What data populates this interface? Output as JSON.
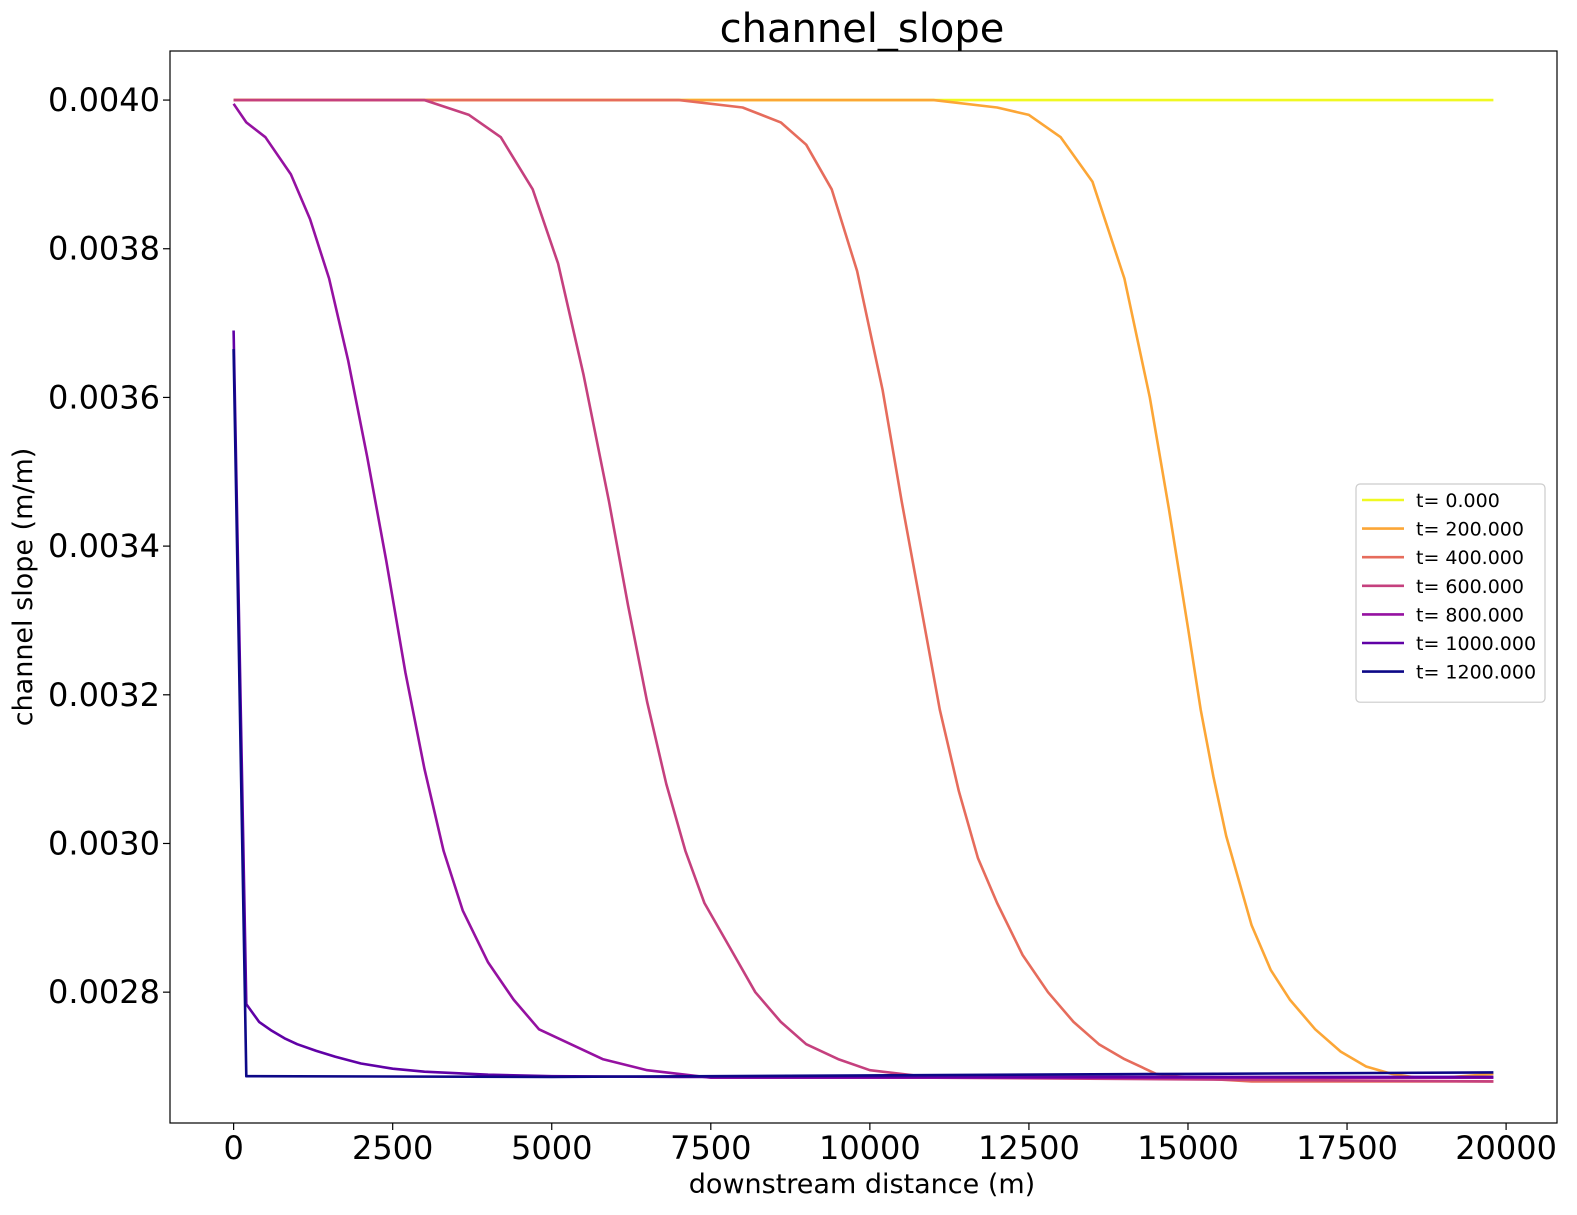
{
  "chart_data": {
    "type": "line",
    "title": "channel_slope",
    "xlabel": "downstream distance (m)",
    "ylabel": "channel slope (m/m)",
    "xlim": [
      -1000,
      20800
    ],
    "ylim": [
      0.002624,
      0.004066
    ],
    "xticks": [
      0,
      2500,
      5000,
      7500,
      10000,
      12500,
      15000,
      17500,
      20000
    ],
    "xtick_labels": [
      "0",
      "2500",
      "5000",
      "7500",
      "10000",
      "12500",
      "15000",
      "17500",
      "20000"
    ],
    "yticks": [
      0.0028,
      0.003,
      0.0032,
      0.0034,
      0.0036,
      0.0038,
      0.004
    ],
    "ytick_labels": [
      "0.0028",
      "0.0030",
      "0.0032",
      "0.0034",
      "0.0036",
      "0.0038",
      "0.0040"
    ],
    "grid": false,
    "legend_position": "center-right",
    "series": [
      {
        "name": "t= 0.000",
        "color": "#f0f921",
        "x": [
          0,
          19800
        ],
        "y": [
          0.004,
          0.004
        ]
      },
      {
        "name": "t= 200.000",
        "color": "#fca636",
        "x": [
          0,
          11000,
          12000,
          12500,
          13000,
          13500,
          14000,
          14400,
          14700,
          15000,
          15200,
          15400,
          15600,
          15800,
          16000,
          16300,
          16600,
          17000,
          17400,
          17800,
          18200,
          18600,
          19000,
          19800
        ],
        "y": [
          0.004,
          0.004,
          0.00399,
          0.00398,
          0.00395,
          0.00389,
          0.00376,
          0.0036,
          0.00345,
          0.00329,
          0.00318,
          0.00309,
          0.00301,
          0.00295,
          0.00289,
          0.00283,
          0.00279,
          0.00275,
          0.00272,
          0.0027,
          0.00269,
          0.002685,
          0.002685,
          0.00269
        ]
      },
      {
        "name": "t= 400.000",
        "color": "#e66c5c",
        "x": [
          0,
          7000,
          8000,
          8600,
          9000,
          9400,
          9800,
          10200,
          10500,
          10800,
          11100,
          11400,
          11700,
          12000,
          12400,
          12800,
          13200,
          13600,
          14000,
          14500,
          15000,
          16000,
          19800
        ],
        "y": [
          0.004,
          0.004,
          0.00399,
          0.00397,
          0.00394,
          0.00388,
          0.00377,
          0.00361,
          0.00346,
          0.00332,
          0.00318,
          0.00307,
          0.00298,
          0.00292,
          0.00285,
          0.0028,
          0.00276,
          0.00273,
          0.00271,
          0.00269,
          0.002685,
          0.00268,
          0.00268
        ]
      },
      {
        "name": "t= 600.000",
        "color": "#c5407e",
        "x": [
          0,
          3000,
          3700,
          4200,
          4700,
          5100,
          5500,
          5900,
          6200,
          6500,
          6800,
          7100,
          7400,
          7800,
          8200,
          8600,
          9000,
          9500,
          10000,
          11000,
          19800
        ],
        "y": [
          0.004,
          0.004,
          0.00398,
          0.00395,
          0.00388,
          0.00378,
          0.00363,
          0.00346,
          0.00332,
          0.00319,
          0.00308,
          0.00299,
          0.00292,
          0.00286,
          0.0028,
          0.00276,
          0.00273,
          0.00271,
          0.002695,
          0.002685,
          0.00268
        ]
      },
      {
        "name": "t= 800.000",
        "color": "#9511a1",
        "x": [
          0,
          200,
          500,
          900,
          1200,
          1500,
          1800,
          2100,
          2400,
          2700,
          3000,
          3300,
          3600,
          4000,
          4400,
          4800,
          5300,
          5800,
          6500,
          7500,
          19800
        ],
        "y": [
          0.003995,
          0.00397,
          0.00395,
          0.0039,
          0.00384,
          0.00376,
          0.00365,
          0.00352,
          0.00338,
          0.00323,
          0.0031,
          0.00299,
          0.00291,
          0.00284,
          0.00279,
          0.00275,
          0.00273,
          0.00271,
          0.002695,
          0.002685,
          0.002685
        ]
      },
      {
        "name": "t= 1000.000",
        "color": "#6001a6",
        "x": [
          0,
          200,
          400,
          600,
          800,
          1000,
          1300,
          1600,
          2000,
          2500,
          3000,
          4000,
          5000,
          7000,
          10000,
          15000,
          19800
        ],
        "y": [
          0.00369,
          0.002784,
          0.00276,
          0.002748,
          0.002738,
          0.00273,
          0.002721,
          0.002713,
          0.002704,
          0.002697,
          0.002693,
          0.002689,
          0.002687,
          0.002686,
          0.002686,
          0.002686,
          0.002686
        ]
      },
      {
        "name": "t= 1200.000",
        "color": "#0d0887",
        "x": [
          0,
          200,
          5000,
          10000,
          15000,
          19800
        ],
        "y": [
          0.003665,
          0.002687,
          0.002686,
          0.002688,
          0.00269,
          0.002692
        ]
      }
    ]
  }
}
